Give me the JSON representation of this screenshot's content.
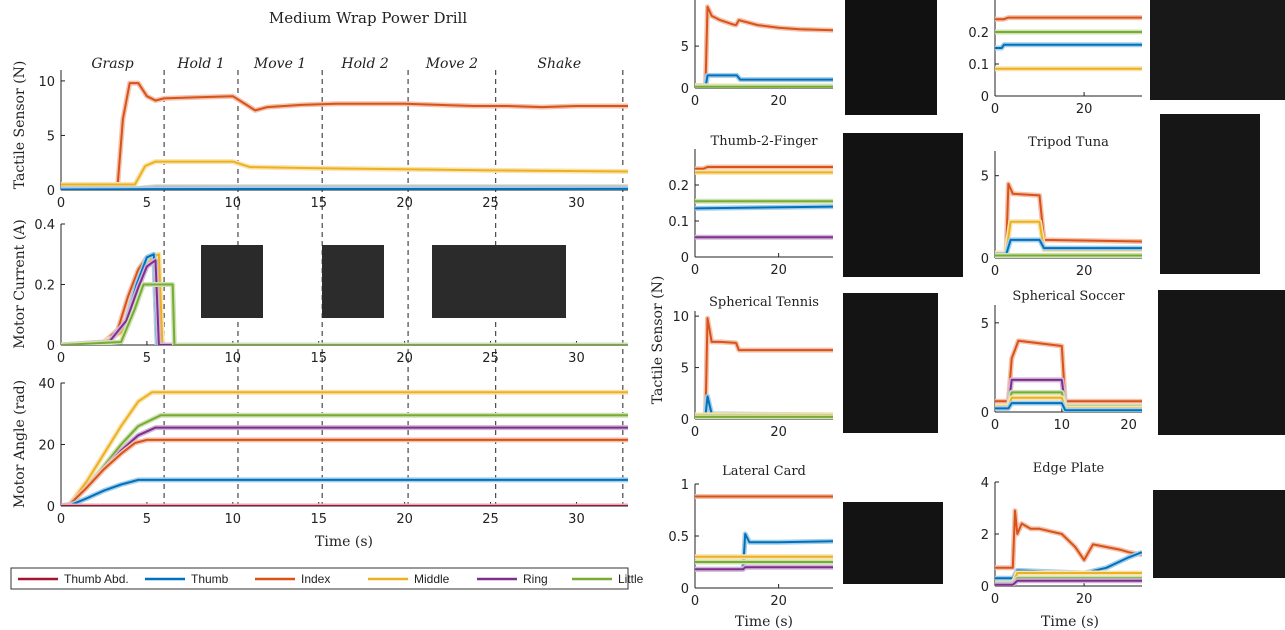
{
  "colors": {
    "Thumb Abd.": "#a2142f",
    "Thumb": "#0072bd",
    "Index": "#d95319",
    "Middle": "#edb120",
    "Ring": "#7e2f8e",
    "Little": "#77ac30"
  },
  "figure": {
    "title": "Medium Wrap Power Drill",
    "legend": [
      "Thumb Abd.",
      "Thumb",
      "Index",
      "Middle",
      "Ring",
      "Little"
    ],
    "phases": [
      {
        "label": "Grasp",
        "start": 0,
        "end": 6
      },
      {
        "label": "Hold 1",
        "start": 6,
        "end": 10.3
      },
      {
        "label": "Move 1",
        "start": 10.3,
        "end": 15.2
      },
      {
        "label": "Hold 2",
        "start": 15.2,
        "end": 20.2
      },
      {
        "label": "Move 2",
        "start": 20.2,
        "end": 25.3
      },
      {
        "label": "Shake",
        "start": 25.3,
        "end": 32.7
      }
    ],
    "xlabel": "Time (s)"
  },
  "chart_data": [
    {
      "id": "drill-tactile",
      "type": "line",
      "ylabel": "Tactile Sensor (N)",
      "xlim": [
        0,
        33
      ],
      "ylim": [
        0,
        11
      ],
      "xticks": [
        0,
        5,
        10,
        15,
        20,
        25,
        30
      ],
      "yticks": [
        0,
        5,
        10
      ],
      "series": [
        {
          "name": "Index",
          "x": [
            0,
            3.3,
            3.6,
            4.0,
            4.5,
            5.0,
            5.5,
            6,
            8,
            10,
            10.8,
            11.3,
            12,
            14,
            16,
            18,
            20,
            22,
            24,
            26,
            28,
            30,
            33
          ],
          "y": [
            0.5,
            0.5,
            6.5,
            9.8,
            9.8,
            8.6,
            8.2,
            8.4,
            8.5,
            8.6,
            7.8,
            7.3,
            7.6,
            7.8,
            7.9,
            7.9,
            7.9,
            7.8,
            7.7,
            7.7,
            7.6,
            7.7,
            7.7
          ]
        },
        {
          "name": "Middle",
          "x": [
            0,
            4.3,
            4.9,
            5.5,
            10,
            11,
            15,
            20,
            25,
            33
          ],
          "y": [
            0.5,
            0.5,
            2.2,
            2.6,
            2.6,
            2.1,
            2.0,
            1.9,
            1.8,
            1.7
          ]
        },
        {
          "name": "Little",
          "x": [
            0,
            4.5,
            5.5,
            33
          ],
          "y": [
            0.15,
            0.15,
            0.3,
            0.3
          ]
        },
        {
          "name": "Ring",
          "x": [
            0,
            4.5,
            5.5,
            33
          ],
          "y": [
            0.1,
            0.1,
            0.2,
            0.2
          ]
        },
        {
          "name": "Thumb",
          "x": [
            0,
            5,
            33
          ],
          "y": [
            0.05,
            0.08,
            0.1
          ]
        }
      ]
    },
    {
      "id": "drill-current",
      "type": "line",
      "ylabel": "Motor Current (A)",
      "xlim": [
        0,
        33
      ],
      "ylim": [
        0,
        0.4
      ],
      "xticks": [
        0,
        5,
        10,
        15,
        20,
        25,
        30
      ],
      "yticks": [
        0,
        0.2,
        0.4
      ],
      "series": [
        {
          "name": "Index",
          "x": [
            0,
            2.5,
            3.3,
            3.9,
            4.5,
            5.0,
            5.4,
            5.6,
            33
          ],
          "y": [
            0,
            0.01,
            0.05,
            0.16,
            0.25,
            0.29,
            0.3,
            0,
            0
          ]
        },
        {
          "name": "Middle",
          "x": [
            0,
            2.5,
            3.5,
            4.2,
            4.8,
            5.3,
            5.7,
            5.9,
            33
          ],
          "y": [
            0,
            0.01,
            0.04,
            0.14,
            0.24,
            0.29,
            0.3,
            0,
            0
          ]
        },
        {
          "name": "Thumb",
          "x": [
            0,
            2.8,
            3.8,
            4.4,
            5.0,
            5.4,
            5.6,
            33
          ],
          "y": [
            0,
            0.01,
            0.08,
            0.2,
            0.29,
            0.3,
            0,
            0
          ]
        },
        {
          "name": "Ring",
          "x": [
            0,
            2.8,
            3.8,
            4.5,
            5.0,
            5.5,
            5.7,
            33
          ],
          "y": [
            0,
            0.01,
            0.08,
            0.19,
            0.26,
            0.28,
            0,
            0
          ]
        },
        {
          "name": "Little",
          "x": [
            0,
            3.5,
            4.3,
            4.8,
            5.2,
            5.6,
            6.5,
            6.6,
            33
          ],
          "y": [
            0,
            0.01,
            0.12,
            0.2,
            0.2,
            0.2,
            0.2,
            0,
            0
          ]
        }
      ]
    },
    {
      "id": "drill-angle",
      "type": "line",
      "ylabel": "Motor Angle (rad)",
      "xlim": [
        0,
        33
      ],
      "ylim": [
        0,
        40
      ],
      "xticks": [
        0,
        5,
        10,
        15,
        20,
        25,
        30
      ],
      "yticks": [
        0,
        20,
        40
      ],
      "series": [
        {
          "name": "Middle",
          "x": [
            0,
            0.5,
            1.5,
            2.5,
            3.5,
            4.5,
            5.3,
            33
          ],
          "y": [
            0,
            0.5,
            8,
            17,
            26,
            34,
            37,
            37
          ]
        },
        {
          "name": "Little",
          "x": [
            0,
            0.5,
            1.5,
            2.5,
            3.5,
            4.5,
            5.8,
            33
          ],
          "y": [
            0,
            0.5,
            6,
            13,
            20,
            26,
            29.5,
            29.5
          ]
        },
        {
          "name": "Ring",
          "x": [
            0,
            0.5,
            1.5,
            2.5,
            3.5,
            4.5,
            5.5,
            33
          ],
          "y": [
            0,
            0.5,
            6,
            12,
            18,
            23,
            25.5,
            25.5
          ]
        },
        {
          "name": "Index",
          "x": [
            0,
            0.5,
            1.5,
            2.5,
            3.5,
            4.3,
            5,
            33
          ],
          "y": [
            0,
            0.5,
            6,
            12,
            17,
            20.5,
            21.5,
            21.5
          ]
        },
        {
          "name": "Thumb",
          "x": [
            0,
            0.5,
            1.5,
            2.5,
            3.5,
            4.5,
            33
          ],
          "y": [
            0,
            0.2,
            2.5,
            5,
            7,
            8.5,
            8.5
          ]
        },
        {
          "name": "Thumb Abd.",
          "x": [
            0,
            33
          ],
          "y": [
            0,
            0
          ]
        }
      ]
    },
    {
      "id": "top-left-partial",
      "type": "line",
      "title": "",
      "xlim": [
        0,
        33
      ],
      "ylim": [
        0,
        10.5
      ],
      "xticks": [
        0,
        20
      ],
      "yticks": [
        0,
        5
      ],
      "series": [
        {
          "name": "Index",
          "x": [
            0,
            2.5,
            3,
            4,
            6,
            9,
            9.8,
            10.5,
            15,
            20,
            25,
            33
          ],
          "y": [
            0.3,
            0.3,
            9.7,
            8.6,
            8.1,
            7.6,
            7.5,
            8.1,
            7.5,
            7.2,
            7.0,
            6.9
          ]
        },
        {
          "name": "Thumb",
          "x": [
            0,
            2.5,
            3,
            10,
            10.8,
            33
          ],
          "y": [
            0.1,
            0.1,
            1.5,
            1.5,
            1.0,
            1.0
          ]
        },
        {
          "name": "Middle",
          "x": [
            0,
            33
          ],
          "y": [
            0.25,
            0.25
          ]
        },
        {
          "name": "Little",
          "x": [
            0,
            33
          ],
          "y": [
            0.15,
            0.15
          ]
        }
      ]
    },
    {
      "id": "top-right-partial",
      "type": "line",
      "title": "",
      "xlim": [
        0,
        33
      ],
      "ylim": [
        0,
        0.3
      ],
      "xticks": [
        0,
        20
      ],
      "yticks": [
        0,
        0.1,
        0.2
      ],
      "series": [
        {
          "name": "Index",
          "x": [
            0,
            2,
            3,
            33
          ],
          "y": [
            0.24,
            0.24,
            0.245,
            0.245
          ]
        },
        {
          "name": "Little",
          "x": [
            0,
            33
          ],
          "y": [
            0.2,
            0.2
          ]
        },
        {
          "name": "Thumb",
          "x": [
            0,
            1.5,
            2,
            33
          ],
          "y": [
            0.15,
            0.15,
            0.16,
            0.16
          ]
        },
        {
          "name": "Middle",
          "x": [
            0,
            33
          ],
          "y": [
            0.085,
            0.085
          ]
        }
      ]
    },
    {
      "id": "thumb-2-finger",
      "type": "line",
      "title": "Thumb-2-Finger",
      "xlim": [
        0,
        33
      ],
      "ylim": [
        0,
        0.3
      ],
      "xticks": [
        0,
        20
      ],
      "yticks": [
        0,
        0.1,
        0.2
      ],
      "series": [
        {
          "name": "Index",
          "x": [
            0,
            2,
            3,
            33
          ],
          "y": [
            0.245,
            0.245,
            0.25,
            0.25
          ]
        },
        {
          "name": "Middle",
          "x": [
            0,
            33
          ],
          "y": [
            0.235,
            0.235
          ]
        },
        {
          "name": "Little",
          "x": [
            0,
            33
          ],
          "y": [
            0.155,
            0.155
          ]
        },
        {
          "name": "Thumb",
          "x": [
            0,
            33
          ],
          "y": [
            0.135,
            0.14
          ]
        },
        {
          "name": "Ring",
          "x": [
            0,
            33
          ],
          "y": [
            0.055,
            0.055
          ]
        }
      ]
    },
    {
      "id": "tripod-tuna",
      "type": "line",
      "title": "Tripod Tuna",
      "xlim": [
        0,
        33
      ],
      "ylim": [
        0,
        6.5
      ],
      "xticks": [
        0,
        20
      ],
      "yticks": [
        0,
        5
      ],
      "series": [
        {
          "name": "Index",
          "x": [
            0,
            2.5,
            3,
            4,
            10,
            11,
            33
          ],
          "y": [
            0.3,
            0.3,
            4.5,
            3.9,
            3.8,
            1.1,
            1.0
          ]
        },
        {
          "name": "Middle",
          "x": [
            0,
            2.5,
            3.5,
            10,
            11,
            33
          ],
          "y": [
            0.3,
            0.3,
            2.2,
            2.2,
            0.5,
            0.5
          ]
        },
        {
          "name": "Thumb",
          "x": [
            0,
            2.5,
            3.5,
            10,
            11,
            33
          ],
          "y": [
            0.2,
            0.2,
            1.1,
            1.1,
            0.6,
            0.6
          ]
        },
        {
          "name": "Little",
          "x": [
            0,
            33
          ],
          "y": [
            0.15,
            0.15
          ]
        }
      ]
    },
    {
      "id": "spherical-tennis",
      "type": "line",
      "title": "Spherical Tennis",
      "xlim": [
        0,
        33
      ],
      "ylim": [
        0,
        10.5
      ],
      "xticks": [
        0,
        20
      ],
      "yticks": [
        0,
        5,
        10
      ],
      "series": [
        {
          "name": "Index",
          "x": [
            0,
            2.5,
            3,
            4,
            6,
            9.8,
            10.5,
            33
          ],
          "y": [
            0.3,
            0.3,
            9.8,
            7.5,
            7.5,
            7.4,
            6.7,
            6.7
          ]
        },
        {
          "name": "Thumb",
          "x": [
            0,
            2.5,
            3,
            4,
            33
          ],
          "y": [
            0.3,
            0.3,
            2.2,
            0.5,
            0.4
          ]
        },
        {
          "name": "Middle",
          "x": [
            0,
            33
          ],
          "y": [
            0.4,
            0.4
          ]
        },
        {
          "name": "Little",
          "x": [
            0,
            33
          ],
          "y": [
            0.2,
            0.2
          ]
        }
      ]
    },
    {
      "id": "spherical-soccer",
      "type": "line",
      "title": "Spherical Soccer",
      "xlim": [
        0,
        22
      ],
      "ylim": [
        0,
        6
      ],
      "xticks": [
        0,
        10,
        20
      ],
      "yticks": [
        0,
        5
      ],
      "series": [
        {
          "name": "Index",
          "x": [
            0,
            2,
            2.5,
            3.5,
            10,
            10.5,
            22
          ],
          "y": [
            0.6,
            0.6,
            3.0,
            4.0,
            3.7,
            0.6,
            0.6
          ]
        },
        {
          "name": "Ring",
          "x": [
            0,
            2,
            2.5,
            10,
            10.5,
            22
          ],
          "y": [
            0.3,
            0.3,
            1.8,
            1.8,
            0.3,
            0.3
          ]
        },
        {
          "name": "Little",
          "x": [
            0,
            2,
            2.5,
            10,
            10.5,
            22
          ],
          "y": [
            0.3,
            0.3,
            1.1,
            1.1,
            0.3,
            0.3
          ]
        },
        {
          "name": "Middle",
          "x": [
            0,
            2,
            2.5,
            10,
            10.5,
            22
          ],
          "y": [
            0.3,
            0.3,
            0.8,
            0.8,
            0.2,
            0.2
          ]
        },
        {
          "name": "Thumb",
          "x": [
            0,
            2,
            2.5,
            10,
            10.5,
            22
          ],
          "y": [
            0.2,
            0.2,
            0.5,
            0.5,
            0.1,
            0.1
          ]
        }
      ]
    },
    {
      "id": "lateral-card",
      "type": "line",
      "title": "Lateral Card",
      "xlim": [
        0,
        33
      ],
      "ylim": [
        0,
        1
      ],
      "xticks": [
        0,
        20
      ],
      "yticks": [
        0,
        0.5,
        1
      ],
      "series": [
        {
          "name": "Index",
          "x": [
            0,
            33
          ],
          "y": [
            0.88,
            0.88
          ]
        },
        {
          "name": "Thumb",
          "x": [
            0,
            11.5,
            12,
            13,
            20,
            33
          ],
          "y": [
            0.18,
            0.18,
            0.52,
            0.44,
            0.44,
            0.45
          ]
        },
        {
          "name": "Middle",
          "x": [
            0,
            33
          ],
          "y": [
            0.3,
            0.3
          ]
        },
        {
          "name": "Little",
          "x": [
            0,
            33
          ],
          "y": [
            0.25,
            0.25
          ]
        },
        {
          "name": "Ring",
          "x": [
            0,
            11.5,
            12,
            33
          ],
          "y": [
            0.18,
            0.18,
            0.2,
            0.2
          ]
        }
      ],
      "xlabel": "Time (s)"
    },
    {
      "id": "edge-plate",
      "type": "line",
      "title": "Edge Plate",
      "xlim": [
        0,
        33
      ],
      "ylim": [
        0,
        4
      ],
      "xticks": [
        0,
        20
      ],
      "yticks": [
        0,
        2,
        4
      ],
      "series": [
        {
          "name": "Index",
          "x": [
            0,
            4,
            4.5,
            5,
            6,
            8,
            10,
            15,
            18,
            20,
            22,
            25,
            28,
            30,
            33
          ],
          "y": [
            0.7,
            0.7,
            2.9,
            2.0,
            2.4,
            2.2,
            2.2,
            2.0,
            1.5,
            1.0,
            1.6,
            1.5,
            1.4,
            1.3,
            1.2
          ]
        },
        {
          "name": "Thumb",
          "x": [
            0,
            4,
            5,
            20,
            25,
            30,
            33
          ],
          "y": [
            0.3,
            0.3,
            0.6,
            0.5,
            0.7,
            1.1,
            1.3
          ]
        },
        {
          "name": "Middle",
          "x": [
            0,
            4,
            5,
            33
          ],
          "y": [
            0.1,
            0.1,
            0.5,
            0.5
          ]
        },
        {
          "name": "Little",
          "x": [
            0,
            4,
            5,
            33
          ],
          "y": [
            0.1,
            0.1,
            0.3,
            0.3
          ]
        },
        {
          "name": "Ring",
          "x": [
            0,
            4,
            5,
            33
          ],
          "y": [
            0.05,
            0.05,
            0.2,
            0.2
          ]
        }
      ],
      "xlabel": "Time (s)"
    }
  ],
  "right_panels_ylabel": "Tactile Sensor (N)"
}
